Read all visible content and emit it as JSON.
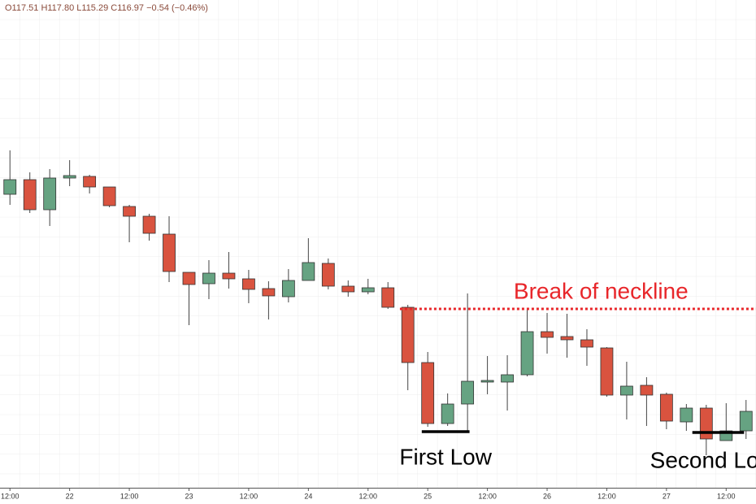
{
  "chart_data": {
    "type": "candlestick",
    "header": "O117.51  H117.80  L115.29  C116.97  −0.54 (−0.46%)",
    "x": [
      0,
      1,
      2,
      3,
      4,
      5,
      6,
      7,
      8,
      9,
      10,
      11,
      12,
      13,
      14,
      15,
      16,
      17,
      18,
      19,
      20,
      21,
      22,
      23,
      24,
      25,
      26,
      27,
      28,
      29,
      30,
      31,
      32,
      33,
      34,
      35,
      36,
      37
    ],
    "open": [
      120.22,
      120.58,
      119.84,
      120.62,
      120.66,
      120.4,
      119.92,
      119.68,
      119.24,
      118.3,
      118.02,
      118.28,
      118.14,
      117.9,
      117.7,
      118.1,
      118.52,
      117.96,
      117.82,
      117.92,
      117.44,
      116.08,
      114.58,
      115.06,
      115.6,
      115.6,
      115.78,
      116.84,
      116.72,
      116.64,
      116.44,
      115.28,
      115.52,
      115.3,
      114.62,
      114.96,
      114.16,
      114.4
    ],
    "high": [
      121.3,
      120.76,
      120.84,
      121.06,
      120.7,
      120.4,
      119.96,
      119.74,
      119.68,
      118.3,
      118.6,
      118.8,
      118.36,
      118.08,
      118.38,
      119.14,
      118.64,
      118.1,
      118.14,
      118.06,
      117.5,
      116.34,
      115.32,
      117.78,
      116.24,
      116.26,
      117.4,
      117.3,
      117.28,
      116.9,
      116.46,
      116.1,
      115.72,
      115.34,
      115.06,
      115.04,
      115.08,
      115.16
    ],
    "low": [
      119.96,
      119.76,
      119.44,
      120.42,
      120.24,
      119.9,
      119.04,
      119.08,
      118.06,
      117.0,
      117.64,
      117.9,
      117.54,
      117.14,
      117.56,
      118.1,
      117.88,
      117.7,
      117.76,
      117.4,
      115.4,
      114.5,
      114.52,
      114.4,
      115.3,
      114.9,
      115.74,
      116.3,
      116.2,
      116.0,
      115.24,
      114.68,
      114.52,
      114.44,
      114.4,
      113.8,
      114.16,
      114.2
    ],
    "close": [
      120.58,
      119.84,
      120.62,
      120.68,
      120.4,
      119.94,
      119.68,
      119.26,
      118.32,
      118.0,
      118.28,
      118.14,
      117.88,
      117.72,
      118.1,
      118.54,
      117.96,
      117.82,
      117.92,
      117.44,
      116.08,
      114.58,
      115.06,
      115.62,
      115.64,
      115.78,
      116.84,
      116.7,
      116.64,
      116.46,
      115.28,
      115.5,
      115.28,
      114.64,
      114.96,
      114.2,
      114.4,
      114.88
    ],
    "up_color": "#66a382",
    "down_color": "#d9533f",
    "xlim": [
      -0.5,
      37.5
    ],
    "ylim": [
      113,
      125
    ],
    "xticks": [
      {
        "value": 0,
        "label": "12:00"
      },
      {
        "value": 3,
        "label": "22"
      },
      {
        "value": 6,
        "label": "12:00"
      },
      {
        "value": 9,
        "label": "23"
      },
      {
        "value": 12,
        "label": "12:00"
      },
      {
        "value": 15,
        "label": "24"
      },
      {
        "value": 18,
        "label": "12:00"
      },
      {
        "value": 21,
        "label": "25"
      },
      {
        "value": 24,
        "label": "12:00"
      },
      {
        "value": 27,
        "label": "26"
      },
      {
        "value": 30,
        "label": "12:00"
      },
      {
        "value": 33,
        "label": "27"
      },
      {
        "value": 36,
        "label": "12:00"
      }
    ],
    "annotations": [
      {
        "text": "Break of neckline",
        "y": 117.4,
        "x": [
          19.6,
          37.5
        ],
        "color": "#e8262a",
        "style": "dotted"
      },
      {
        "text": "First Low",
        "y": 114.38,
        "x": [
          20.7,
          23.1
        ],
        "color": "#000000",
        "style": "solid"
      },
      {
        "text": "Second Low",
        "y": 114.36,
        "x": [
          34.3,
          36.9
        ],
        "color": "#000000",
        "style": "solid"
      }
    ]
  }
}
